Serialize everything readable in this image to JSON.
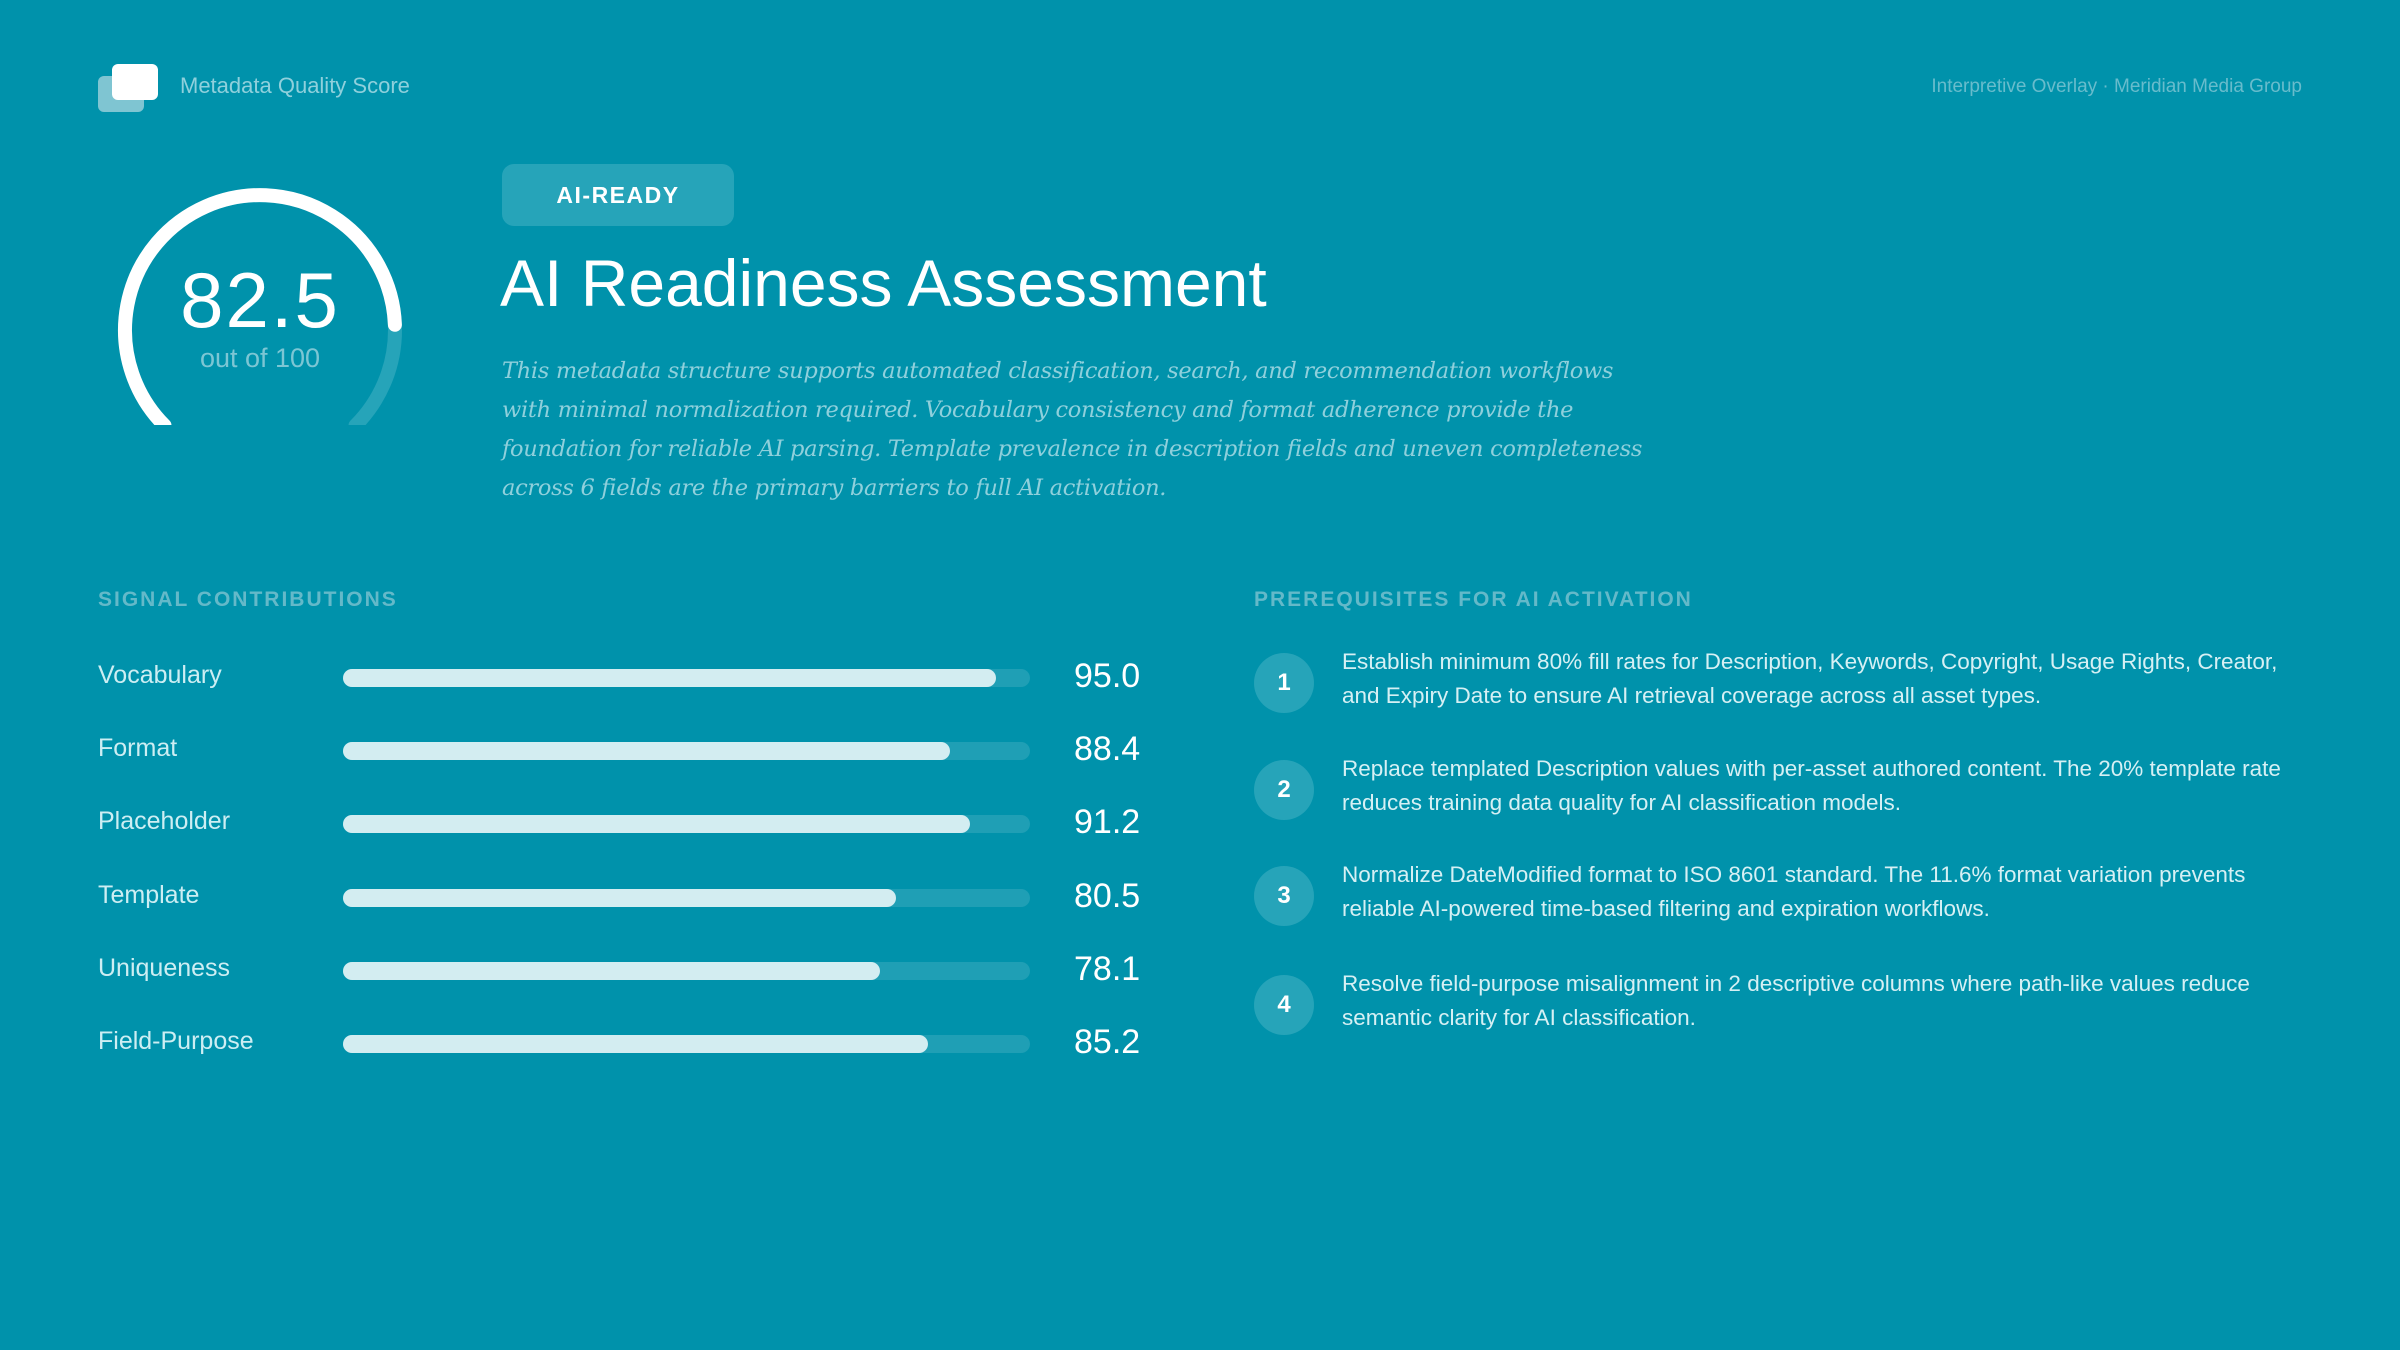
{
  "header": {
    "app_title": "Metadata Quality Score",
    "context_label": "Interpretive Overlay · Meridian Media Group",
    "logo_icon": "stacked-cards-icon"
  },
  "score": {
    "value": "82.5",
    "max_label": "out of 100",
    "value_numeric": 82.5,
    "max": 100
  },
  "assessment": {
    "badge": "AI-READY",
    "title": "AI Readiness Assessment",
    "summary": "This metadata structure supports automated classification, search, and recommendation workflows with minimal normalization required. Vocabulary consistency and format adherence provide the foundation for reliable AI parsing. Template prevalence in description fields and uneven completeness across 6 fields are the primary barriers to full AI activation."
  },
  "signals": {
    "heading": "SIGNAL CONTRIBUTIONS",
    "items": [
      {
        "label": "Vocabulary",
        "value": "95.0",
        "pct": 95.0
      },
      {
        "label": "Format",
        "value": "88.4",
        "pct": 88.4
      },
      {
        "label": "Placeholder",
        "value": "91.2",
        "pct": 91.2
      },
      {
        "label": "Template",
        "value": "80.5",
        "pct": 80.5
      },
      {
        "label": "Uniqueness",
        "value": "78.1",
        "pct": 78.1
      },
      {
        "label": "Field-Purpose",
        "value": "85.2",
        "pct": 85.2
      }
    ]
  },
  "prerequisites": {
    "heading": "PREREQUISITES FOR AI ACTIVATION",
    "items": [
      {
        "num": "1",
        "text": "Establish minimum 80% fill rates for Description, Keywords, Copyright, Usage Rights, Creator, and Expiry Date to ensure AI retrieval coverage across all asset types."
      },
      {
        "num": "2",
        "text": "Replace templated Description values with per-asset authored content. The 20% template rate reduces training data quality for AI classification models."
      },
      {
        "num": "3",
        "text": "Normalize DateModified format to ISO 8601 standard. The 11.6% format variation prevents reliable AI-powered time-based filtering and expiration workflows."
      },
      {
        "num": "4",
        "text": "Resolve field-purpose misalignment in 2 descriptive columns where path-like values reduce semantic clarity for AI classification."
      }
    ]
  },
  "colors": {
    "background": "#0092ab",
    "bar_fill": "#d3edf1",
    "bar_track": "#1f9fb5",
    "badge_bg": "#26a4b9",
    "muted_text": "#8fd0dc"
  }
}
